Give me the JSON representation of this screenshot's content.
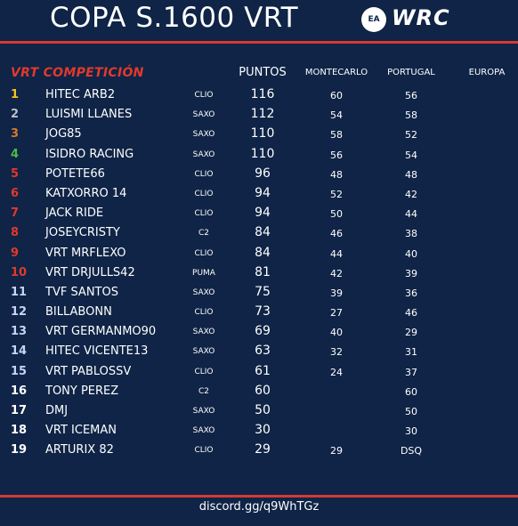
{
  "header": {
    "title": "COPA S.1600 VRT",
    "ea_logo_text": "EA SPORTS",
    "wrc_logo_text": "WRC"
  },
  "table": {
    "section_title": "VRT COMPETICIÓN",
    "columns": {
      "puntos": "PUNTOS",
      "montecarlo": "MONTECARLO",
      "portugal": "PORTUGAL",
      "europa": "EUROPA"
    },
    "position_colors": {
      "1": "#f2c418",
      "2": "#b9c0c8",
      "3": "#d97a2b",
      "4": "#4dbb4a",
      "default_red": "#e2392c",
      "default_blue": "#c7d4f2"
    },
    "rows": [
      {
        "pos": "1",
        "name": "HITEC ARB2",
        "car": "CLIO",
        "points": "116",
        "montecarlo": "60",
        "portugal": "56"
      },
      {
        "pos": "2",
        "name": "LUISMI LLANES",
        "car": "SAXO",
        "points": "112",
        "montecarlo": "54",
        "portugal": "58"
      },
      {
        "pos": "3",
        "name": "JOG85",
        "car": "SAXO",
        "points": "110",
        "montecarlo": "58",
        "portugal": "52"
      },
      {
        "pos": "4",
        "name": "ISIDRO RACING",
        "car": "SAXO",
        "points": "110",
        "montecarlo": "56",
        "portugal": "54"
      },
      {
        "pos": "5",
        "name": "POTETE66",
        "car": "CLIO",
        "points": "96",
        "montecarlo": "48",
        "portugal": "48"
      },
      {
        "pos": "6",
        "name": "KATXORRO 14",
        "car": "CLIO",
        "points": "94",
        "montecarlo": "52",
        "portugal": "42"
      },
      {
        "pos": "7",
        "name": "JACK RIDE",
        "car": "CLIO",
        "points": "94",
        "montecarlo": "50",
        "portugal": "44"
      },
      {
        "pos": "8",
        "name": "JOSEYCRISTY",
        "car": "C2",
        "points": "84",
        "montecarlo": "46",
        "portugal": "38"
      },
      {
        "pos": "9",
        "name": "VRT MRFLEXO",
        "car": "CLIO",
        "points": "84",
        "montecarlo": "44",
        "portugal": "40"
      },
      {
        "pos": "10",
        "name": "VRT DRJULLS42",
        "car": "PUMA",
        "points": "81",
        "montecarlo": "42",
        "portugal": "39"
      },
      {
        "pos": "11",
        "name": "TVF SANTOS",
        "car": "SAXO",
        "points": "75",
        "montecarlo": "39",
        "portugal": "36"
      },
      {
        "pos": "12",
        "name": "BILLABONN",
        "car": "CLIO",
        "points": "73",
        "montecarlo": "27",
        "portugal": "46"
      },
      {
        "pos": "13",
        "name": "VRT GERMANMO90",
        "car": "SAXO",
        "points": "69",
        "montecarlo": "40",
        "portugal": "29"
      },
      {
        "pos": "14",
        "name": "HITEC VICENTE13",
        "car": "SAXO",
        "points": "63",
        "montecarlo": "32",
        "portugal": "31"
      },
      {
        "pos": "15",
        "name": "VRT PABLOSSV",
        "car": "CLIO",
        "points": "61",
        "montecarlo": "24",
        "portugal": "37"
      },
      {
        "pos": "16",
        "name": "TONY PEREZ",
        "car": "C2",
        "points": "60",
        "montecarlo": "",
        "portugal": "60"
      },
      {
        "pos": "17",
        "name": "DMJ",
        "car": "SAXO",
        "points": "50",
        "montecarlo": "",
        "portugal": "50"
      },
      {
        "pos": "18",
        "name": "VRT ICEMAN",
        "car": "SAXO",
        "points": "30",
        "montecarlo": "",
        "portugal": "30"
      },
      {
        "pos": "19",
        "name": "ARTURIX 82",
        "car": "CLIO",
        "points": "29",
        "montecarlo": "29",
        "portugal": "DSQ"
      }
    ]
  },
  "footer": {
    "link": "discord.gg/q9WhTGz"
  }
}
